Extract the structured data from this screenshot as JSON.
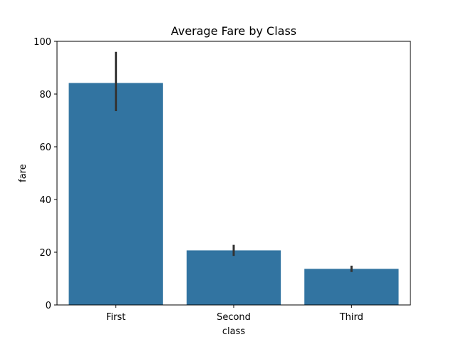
{
  "chart_data": {
    "type": "bar",
    "title": "Average Fare by Class",
    "xlabel": "class",
    "ylabel": "fare",
    "categories": [
      "First",
      "Second",
      "Third"
    ],
    "values": [
      84.2,
      20.7,
      13.7
    ],
    "error_low": [
      73.5,
      18.6,
      12.5
    ],
    "error_high": [
      96.0,
      22.8,
      14.9
    ],
    "ylim": [
      0,
      100
    ],
    "yticks": [
      0,
      20,
      40,
      60,
      80,
      100
    ],
    "ytick_labels": [
      "0",
      "20",
      "40",
      "60",
      "80",
      "100"
    ],
    "grid": false,
    "bar_color": "#3274a1",
    "errorbar_color": "#333333"
  }
}
